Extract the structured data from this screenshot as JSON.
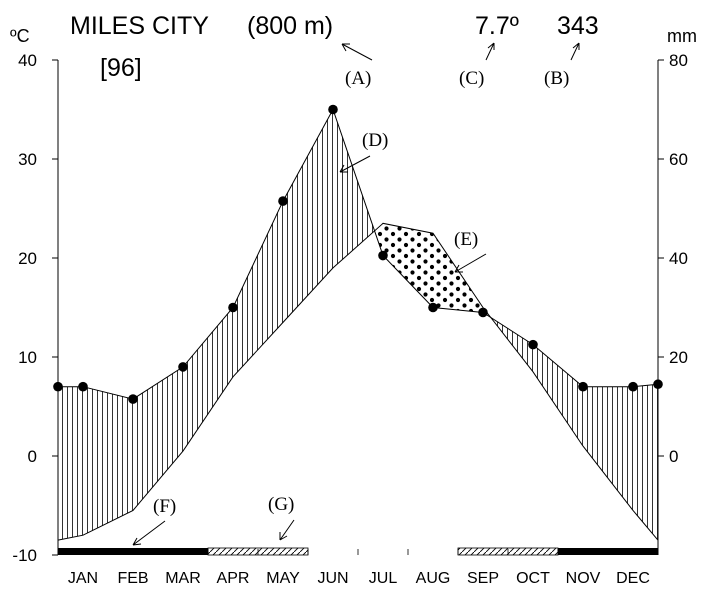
{
  "chart_data": {
    "type": "line",
    "title": "MILES CITY",
    "elevation": "(800 m)",
    "years_of_record": "[96]",
    "mean_annual_temperature": "7.7º",
    "annual_precipitation": "343",
    "left_axis_unit": "ºC",
    "right_axis_unit": "mm",
    "months": [
      "JAN",
      "FEB",
      "MAR",
      "APR",
      "MAY",
      "JUN",
      "JUL",
      "AUG",
      "SEP",
      "OCT",
      "NOV",
      "DEC"
    ],
    "series": [
      {
        "role": "precipitation",
        "axis": "right",
        "values": [
          14,
          11.5,
          18,
          30,
          51.5,
          70,
          40.5,
          30,
          29,
          22.5,
          14,
          14
        ]
      },
      {
        "role": "temperature",
        "axis": "left",
        "values": [
          -8,
          -5.5,
          0.5,
          8,
          13.5,
          19,
          23.5,
          22.5,
          15,
          8.5,
          1,
          -5.5
        ]
      }
    ],
    "temperature_edges": [
      -8.5,
      -8.5
    ],
    "precipitation_edges": [
      14,
      14.5
    ],
    "left_ticks": [
      40,
      30,
      20,
      10,
      0,
      -10
    ],
    "right_ticks": [
      80,
      60,
      40,
      20,
      0
    ],
    "ylim_left": [
      -10,
      40
    ],
    "ylim_right": [
      -20,
      80
    ],
    "frost_bars": [
      {
        "from": 0,
        "to": 3,
        "kind": "certain"
      },
      {
        "from": 3,
        "to": 5,
        "kind": "probable"
      },
      {
        "from": 8,
        "to": 10,
        "kind": "probable"
      },
      {
        "from": 10,
        "to": 12,
        "kind": "certain"
      }
    ],
    "annotations": {
      "A": "(A)",
      "B": "(B)",
      "C": "(C)",
      "D": "(D)",
      "E": "(E)",
      "F": "(F)",
      "G": "(G)"
    }
  }
}
